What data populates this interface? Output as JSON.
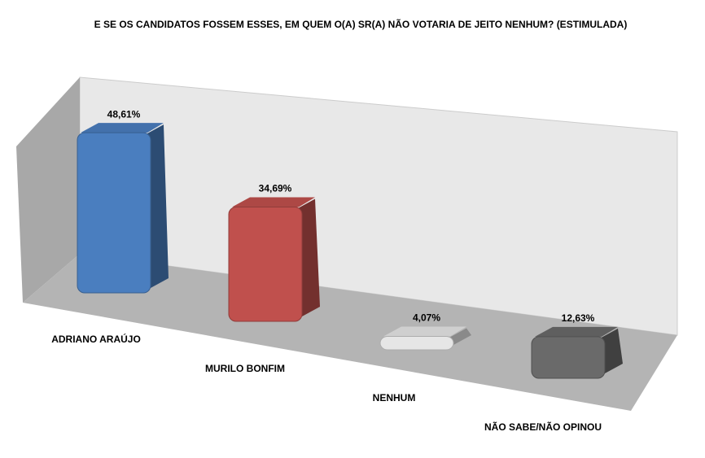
{
  "chart_data": {
    "type": "bar3d",
    "title": "E SE OS CANDIDATOS FOSSEM ESSES, EM QUEM O(A) SR(A) NÃO VOTARIA DE JEITO NENHUM? (ESTIMULADA)",
    "categories": [
      "ADRIANO ARAÚJO",
      "MURILO BONFIM",
      "NENHUM",
      "NÃO SABE/NÃO OPINOU"
    ],
    "values": [
      48.61,
      34.69,
      4.07,
      12.63
    ],
    "value_labels": [
      "48,61%",
      "34,69%",
      "4,07%",
      "12,63%"
    ],
    "colors": [
      "#4a7ebf",
      "#c0504d",
      "#e6e6e6",
      "#6a6a6a"
    ]
  }
}
